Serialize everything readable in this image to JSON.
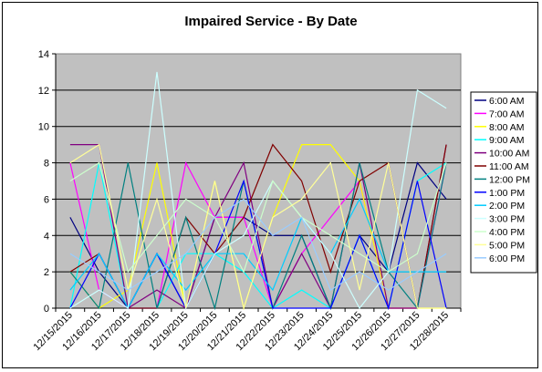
{
  "chart_data": {
    "type": "line",
    "title": "Impaired Service - By Date",
    "xlabel": "",
    "ylabel": "",
    "ylim": [
      0,
      14
    ],
    "yticks": [
      0,
      2,
      4,
      6,
      8,
      10,
      12,
      14
    ],
    "grid": true,
    "legend": "right",
    "categories": [
      "12/15/2015",
      "12/16/2015",
      "12/17/2015",
      "12/18/2015",
      "12/19/2015",
      "12/20/2015",
      "12/21/2015",
      "12/22/2015",
      "12/23/2015",
      "12/24/2015",
      "12/25/2015",
      "12/26/2015",
      "12/27/2015",
      "12/28/2015"
    ],
    "series": [
      {
        "name": "6:00 AM",
        "color": "#000080",
        "values": [
          5,
          2,
          0,
          3,
          0,
          5,
          5,
          4,
          4,
          0,
          4,
          2,
          8,
          6
        ]
      },
      {
        "name": "7:00 AM",
        "color": "#FF00FF",
        "values": [
          8,
          1,
          0,
          0,
          8,
          5,
          5,
          0,
          3,
          5,
          7,
          0,
          0,
          8
        ]
      },
      {
        "name": "8:00 AM",
        "color": "#FFFF00",
        "values": [
          2,
          0,
          1,
          8,
          0,
          7,
          0,
          5,
          9,
          9,
          7,
          0,
          0,
          0
        ]
      },
      {
        "name": "9:00 AM",
        "color": "#00FFFF",
        "values": [
          0,
          8,
          0,
          0,
          3,
          3,
          2,
          0,
          1,
          0,
          4,
          0,
          7,
          8
        ]
      },
      {
        "name": "10:00 AM",
        "color": "#800080",
        "values": [
          9,
          9,
          0,
          1,
          0,
          5,
          8,
          0,
          3,
          0,
          8,
          0,
          0,
          9
        ]
      },
      {
        "name": "11:00 AM",
        "color": "#800000",
        "values": [
          2,
          3,
          0,
          0,
          5,
          3,
          5,
          9,
          7,
          2,
          7,
          8,
          0,
          9
        ]
      },
      {
        "name": "12:00 PM",
        "color": "#008080",
        "values": [
          2,
          0,
          8,
          0,
          5,
          0,
          7,
          0,
          4,
          0,
          8,
          2,
          0,
          8
        ]
      },
      {
        "name": "1:00 PM",
        "color": "#0000FF",
        "values": [
          0,
          3,
          0,
          3,
          0,
          3,
          7,
          0,
          0,
          0,
          4,
          0,
          7,
          0
        ]
      },
      {
        "name": "2:00 PM",
        "color": "#00CCFF",
        "values": [
          1,
          3,
          0,
          3,
          1,
          3,
          3,
          1,
          5,
          3,
          6,
          2,
          2,
          2
        ]
      },
      {
        "name": "3:00 PM",
        "color": "#CCFFFF",
        "values": [
          0,
          1,
          0,
          13,
          0,
          3,
          4,
          7,
          5,
          3,
          0,
          2,
          12,
          11
        ]
      },
      {
        "name": "4:00 PM",
        "color": "#CCFFCC",
        "values": [
          7,
          8,
          2,
          4,
          6,
          5,
          2,
          7,
          5,
          4,
          3,
          2,
          3,
          8
        ]
      },
      {
        "name": "5:00 PM",
        "color": "#FFFF99",
        "values": [
          8,
          9,
          1,
          6,
          0,
          7,
          0,
          5,
          6,
          8,
          1,
          8,
          0,
          0
        ]
      },
      {
        "name": "6:00 PM",
        "color": "#99CCFF",
        "values": [
          3,
          2,
          1,
          2,
          3,
          5,
          6,
          4,
          5,
          1,
          2,
          1,
          2,
          3
        ]
      }
    ]
  }
}
